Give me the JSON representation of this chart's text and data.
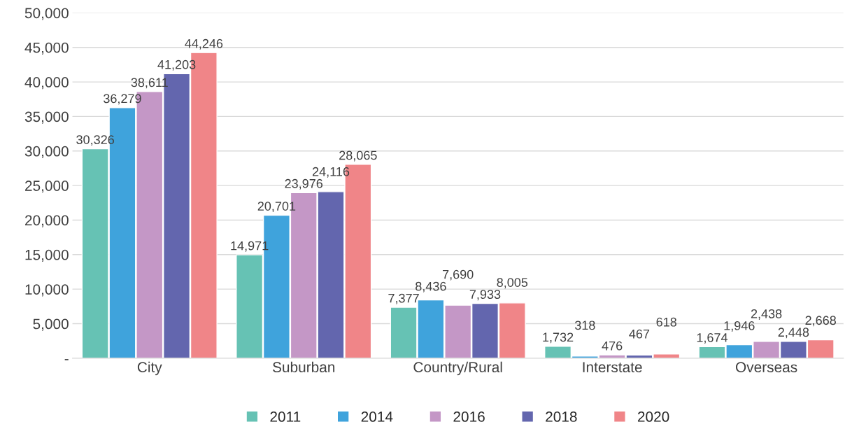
{
  "chart_data": {
    "type": "bar",
    "categories": [
      "City",
      "Suburban",
      "Country/Rural",
      "Interstate",
      "Overseas"
    ],
    "series": [
      {
        "name": "2011",
        "color": "#66c2b4",
        "values": [
          30326,
          14971,
          7377,
          1732,
          1674
        ],
        "value_labels": [
          "30,326",
          "14,971",
          "7,377",
          "1,732",
          "1,674"
        ]
      },
      {
        "name": "2014",
        "color": "#3fa3dc",
        "values": [
          36279,
          20701,
          8436,
          318,
          1946
        ],
        "value_labels": [
          "36,279",
          "20,701",
          "8,436",
          "318",
          "1,946"
        ]
      },
      {
        "name": "2016",
        "color": "#c497c6",
        "values": [
          38611,
          23976,
          7690,
          476,
          2438
        ],
        "value_labels": [
          "38,611",
          "23,976",
          "7,690",
          "476",
          "2,438"
        ]
      },
      {
        "name": "2018",
        "color": "#6366ae",
        "values": [
          41203,
          24116,
          7933,
          467,
          2448
        ],
        "value_labels": [
          "41,203",
          "24,116",
          "7,933",
          "467",
          "2,448"
        ]
      },
      {
        "name": "2020",
        "color": "#f08588",
        "values": [
          44246,
          28065,
          8005,
          618,
          2668
        ],
        "value_labels": [
          "44,246",
          "28,065",
          "8,005",
          "618",
          "2,668"
        ]
      }
    ],
    "ylim": [
      0,
      50000
    ],
    "yticks": [
      {
        "value": 0,
        "label": "-"
      },
      {
        "value": 5000,
        "label": "5,000"
      },
      {
        "value": 10000,
        "label": "10,000"
      },
      {
        "value": 15000,
        "label": "15,000"
      },
      {
        "value": 20000,
        "label": "20,000"
      },
      {
        "value": 25000,
        "label": "25,000"
      },
      {
        "value": 30000,
        "label": "30,000"
      },
      {
        "value": 35000,
        "label": "35,000"
      },
      {
        "value": 40000,
        "label": "40,000"
      },
      {
        "value": 45000,
        "label": "45,000"
      },
      {
        "value": 50000,
        "label": "50,000"
      }
    ],
    "grid": "y",
    "legend": "bottom"
  }
}
